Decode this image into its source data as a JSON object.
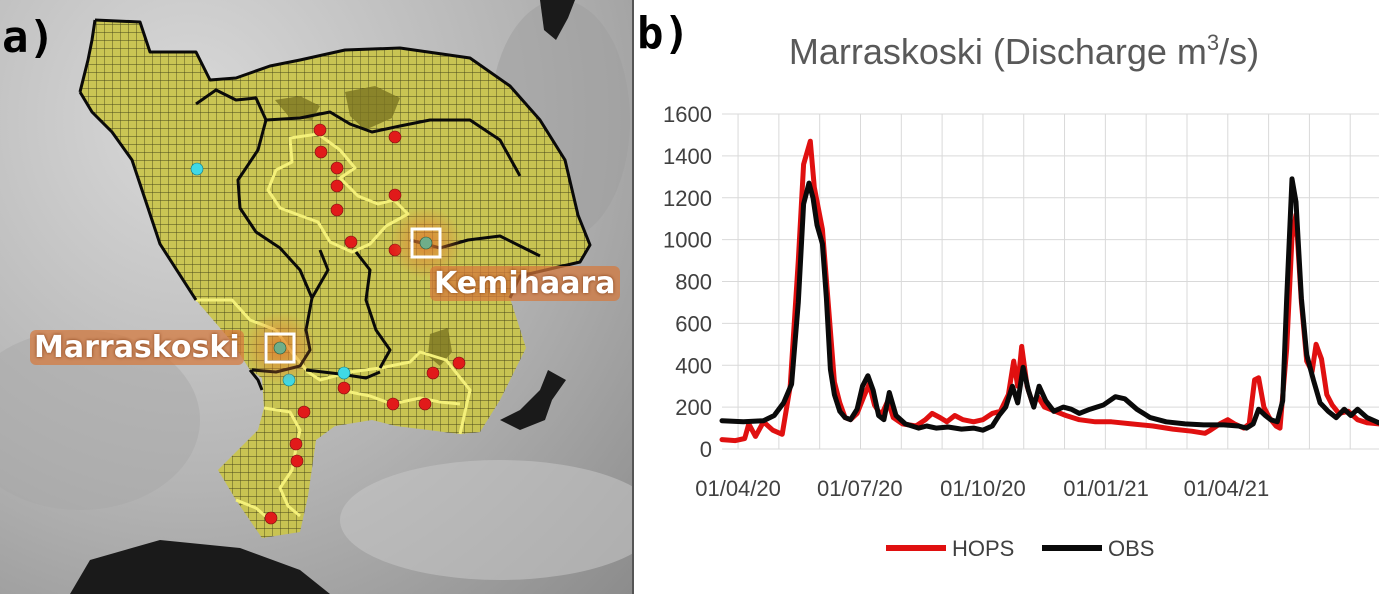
{
  "panel_a": {
    "letter": "a)",
    "stations": {
      "marraskoski": "Marraskoski",
      "kemihaara": "Kemihaara"
    }
  },
  "panel_b": {
    "letter": "b)"
  },
  "colors": {
    "hops": "#e01010",
    "obs": "#0a0a0a",
    "grid": "#d9d9d9",
    "catchment": "#c9c44d",
    "sub_boundary": "#f4f07a",
    "red_dot": "#e11a1a",
    "cyan_dot": "#3fd9e6"
  },
  "chart_data": {
    "type": "line",
    "title_parts": [
      "Marraskoski (Discharge m",
      "3",
      "/s)"
    ],
    "ylim": [
      0,
      1600
    ],
    "yticks": [
      "0",
      "200",
      "400",
      "600",
      "800",
      "1000",
      "1200",
      "1400",
      "1600"
    ],
    "xlim": [
      "2020-03-20",
      "2021-07-24"
    ],
    "xticks": [
      {
        "date": "2020-04-01",
        "label": "01/04/20"
      },
      {
        "date": "2020-07-01",
        "label": "01/07/20"
      },
      {
        "date": "2020-10-01",
        "label": "01/10/20"
      },
      {
        "date": "2021-01-01",
        "label": "01/01/21"
      },
      {
        "date": "2021-04-01",
        "label": "01/04/21"
      }
    ],
    "grid": true,
    "legend_position": "bottom",
    "series": [
      {
        "name": "HOPS",
        "color": "#e01010",
        "points": [
          [
            "2020-03-20",
            45
          ],
          [
            "2020-03-30",
            40
          ],
          [
            "2020-04-06",
            50
          ],
          [
            "2020-04-09",
            120
          ],
          [
            "2020-04-14",
            60
          ],
          [
            "2020-04-20",
            130
          ],
          [
            "2020-04-27",
            90
          ],
          [
            "2020-05-04",
            70
          ],
          [
            "2020-05-10",
            300
          ],
          [
            "2020-05-16",
            900
          ],
          [
            "2020-05-20",
            1360
          ],
          [
            "2020-05-25",
            1470
          ],
          [
            "2020-05-28",
            1250
          ],
          [
            "2020-06-03",
            1050
          ],
          [
            "2020-06-08",
            650
          ],
          [
            "2020-06-12",
            320
          ],
          [
            "2020-06-16",
            220
          ],
          [
            "2020-06-20",
            150
          ],
          [
            "2020-06-24",
            140
          ],
          [
            "2020-06-29",
            170
          ],
          [
            "2020-07-04",
            250
          ],
          [
            "2020-07-08",
            310
          ],
          [
            "2020-07-12",
            210
          ],
          [
            "2020-07-17",
            160
          ],
          [
            "2020-07-22",
            230
          ],
          [
            "2020-07-26",
            150
          ],
          [
            "2020-08-02",
            120
          ],
          [
            "2020-08-12",
            110
          ],
          [
            "2020-08-19",
            140
          ],
          [
            "2020-08-24",
            170
          ],
          [
            "2020-08-30",
            150
          ],
          [
            "2020-09-04",
            130
          ],
          [
            "2020-09-10",
            160
          ],
          [
            "2020-09-16",
            140
          ],
          [
            "2020-09-24",
            130
          ],
          [
            "2020-10-01",
            140
          ],
          [
            "2020-10-08",
            170
          ],
          [
            "2020-10-14",
            180
          ],
          [
            "2020-10-20",
            260
          ],
          [
            "2020-10-24",
            420
          ],
          [
            "2020-10-27",
            300
          ],
          [
            "2020-10-30",
            490
          ],
          [
            "2020-11-03",
            300
          ],
          [
            "2020-11-07",
            220
          ],
          [
            "2020-11-11",
            250
          ],
          [
            "2020-11-16",
            200
          ],
          [
            "2020-11-24",
            180
          ],
          [
            "2020-12-02",
            160
          ],
          [
            "2020-12-12",
            140
          ],
          [
            "2020-12-24",
            130
          ],
          [
            "2021-01-05",
            130
          ],
          [
            "2021-01-20",
            120
          ],
          [
            "2021-02-05",
            110
          ],
          [
            "2021-02-20",
            95
          ],
          [
            "2021-03-06",
            85
          ],
          [
            "2021-03-16",
            75
          ],
          [
            "2021-03-20",
            90
          ],
          [
            "2021-03-27",
            120
          ],
          [
            "2021-04-02",
            140
          ],
          [
            "2021-04-07",
            120
          ],
          [
            "2021-04-14",
            100
          ],
          [
            "2021-04-18",
            120
          ],
          [
            "2021-04-22",
            330
          ],
          [
            "2021-04-25",
            340
          ],
          [
            "2021-04-29",
            200
          ],
          [
            "2021-05-03",
            150
          ],
          [
            "2021-05-08",
            110
          ],
          [
            "2021-05-11",
            100
          ],
          [
            "2021-05-16",
            480
          ],
          [
            "2021-05-20",
            1010
          ],
          [
            "2021-05-23",
            1120
          ],
          [
            "2021-05-27",
            700
          ],
          [
            "2021-05-31",
            420
          ],
          [
            "2021-06-04",
            370
          ],
          [
            "2021-06-07",
            500
          ],
          [
            "2021-06-11",
            430
          ],
          [
            "2021-06-15",
            260
          ],
          [
            "2021-06-19",
            210
          ],
          [
            "2021-06-24",
            170
          ],
          [
            "2021-07-01",
            180
          ],
          [
            "2021-07-08",
            140
          ],
          [
            "2021-07-15",
            125
          ],
          [
            "2021-07-24",
            120
          ]
        ]
      },
      {
        "name": "OBS",
        "color": "#0a0a0a",
        "points": [
          [
            "2020-03-20",
            135
          ],
          [
            "2020-04-05",
            130
          ],
          [
            "2020-04-20",
            135
          ],
          [
            "2020-04-28",
            160
          ],
          [
            "2020-05-05",
            220
          ],
          [
            "2020-05-11",
            310
          ],
          [
            "2020-05-16",
            700
          ],
          [
            "2020-05-20",
            1170
          ],
          [
            "2020-05-24",
            1270
          ],
          [
            "2020-05-27",
            1200
          ],
          [
            "2020-05-30",
            1070
          ],
          [
            "2020-06-03",
            980
          ],
          [
            "2020-06-06",
            720
          ],
          [
            "2020-06-09",
            380
          ],
          [
            "2020-06-12",
            260
          ],
          [
            "2020-06-16",
            180
          ],
          [
            "2020-06-20",
            150
          ],
          [
            "2020-06-24",
            140
          ],
          [
            "2020-06-29",
            190
          ],
          [
            "2020-07-03",
            300
          ],
          [
            "2020-07-07",
            350
          ],
          [
            "2020-07-11",
            280
          ],
          [
            "2020-07-15",
            160
          ],
          [
            "2020-07-19",
            140
          ],
          [
            "2020-07-23",
            270
          ],
          [
            "2020-07-28",
            160
          ],
          [
            "2020-08-04",
            120
          ],
          [
            "2020-08-14",
            100
          ],
          [
            "2020-08-20",
            110
          ],
          [
            "2020-08-27",
            100
          ],
          [
            "2020-09-05",
            105
          ],
          [
            "2020-09-15",
            95
          ],
          [
            "2020-09-24",
            100
          ],
          [
            "2020-10-01",
            90
          ],
          [
            "2020-10-08",
            110
          ],
          [
            "2020-10-13",
            160
          ],
          [
            "2020-10-18",
            200
          ],
          [
            "2020-10-23",
            300
          ],
          [
            "2020-10-27",
            220
          ],
          [
            "2020-10-31",
            390
          ],
          [
            "2020-11-04",
            280
          ],
          [
            "2020-11-08",
            200
          ],
          [
            "2020-11-12",
            300
          ],
          [
            "2020-11-17",
            230
          ],
          [
            "2020-11-23",
            180
          ],
          [
            "2020-11-30",
            200
          ],
          [
            "2020-12-06",
            190
          ],
          [
            "2020-12-12",
            170
          ],
          [
            "2020-12-20",
            190
          ],
          [
            "2020-12-30",
            210
          ],
          [
            "2021-01-08",
            250
          ],
          [
            "2021-01-15",
            240
          ],
          [
            "2021-01-24",
            190
          ],
          [
            "2021-02-03",
            150
          ],
          [
            "2021-02-15",
            130
          ],
          [
            "2021-03-01",
            120
          ],
          [
            "2021-03-15",
            115
          ],
          [
            "2021-03-30",
            115
          ],
          [
            "2021-04-10",
            110
          ],
          [
            "2021-04-16",
            100
          ],
          [
            "2021-04-21",
            120
          ],
          [
            "2021-04-25",
            190
          ],
          [
            "2021-04-30",
            160
          ],
          [
            "2021-05-04",
            140
          ],
          [
            "2021-05-09",
            130
          ],
          [
            "2021-05-13",
            230
          ],
          [
            "2021-05-16",
            720
          ],
          [
            "2021-05-20",
            1290
          ],
          [
            "2021-05-23",
            1180
          ],
          [
            "2021-05-27",
            720
          ],
          [
            "2021-05-31",
            450
          ],
          [
            "2021-06-05",
            330
          ],
          [
            "2021-06-10",
            220
          ],
          [
            "2021-06-16",
            180
          ],
          [
            "2021-06-22",
            150
          ],
          [
            "2021-06-28",
            190
          ],
          [
            "2021-07-03",
            160
          ],
          [
            "2021-07-08",
            190
          ],
          [
            "2021-07-15",
            150
          ],
          [
            "2021-07-24",
            125
          ]
        ]
      }
    ]
  }
}
